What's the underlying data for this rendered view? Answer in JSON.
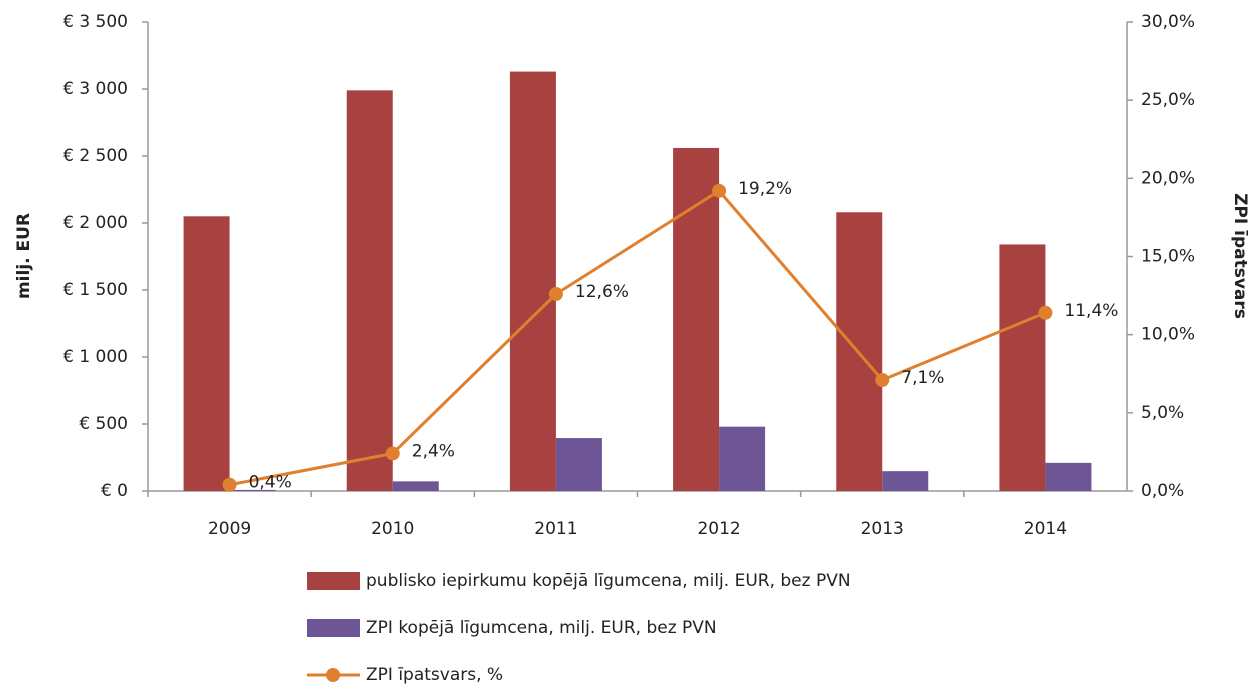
{
  "chart_data": {
    "type": "bar",
    "y_label": "milj. EUR",
    "y2_label": "ZPI īpatsvars",
    "categories": [
      "2009",
      "2010",
      "2011",
      "2012",
      "2013",
      "2014"
    ],
    "series": [
      {
        "name": "publisko iepirkumu kopējā līgumcena, milj. EUR, bez PVN",
        "type": "bar",
        "color": "#a84240",
        "values": [
          2050,
          2990,
          3130,
          2560,
          2080,
          1840
        ]
      },
      {
        "name": "ZPI kopējā līgumcena, milj. EUR, bez PVN",
        "type": "bar",
        "color": "#6e5596",
        "values": [
          8,
          72,
          395,
          480,
          148,
          210
        ]
      },
      {
        "name": "ZPI īpatsvars, %",
        "type": "line",
        "axis": "y2",
        "color": "#e07f2e",
        "values": [
          0.4,
          2.4,
          12.6,
          19.2,
          7.1,
          11.4
        ],
        "value_labels": [
          "0,4%",
          "2,4%",
          "12,6%",
          "19,2%",
          "7,1%",
          "11,4%"
        ]
      }
    ],
    "ylim": [
      0,
      3500
    ],
    "yticks": [
      {
        "value": 0,
        "label": "€ 0"
      },
      {
        "value": 500,
        "label": "€ 500"
      },
      {
        "value": 1000,
        "label": "€ 1 000"
      },
      {
        "value": 1500,
        "label": "€ 1 500"
      },
      {
        "value": 2000,
        "label": "€ 2 000"
      },
      {
        "value": 2500,
        "label": "€ 2 500"
      },
      {
        "value": 3000,
        "label": "€ 3 000"
      },
      {
        "value": 3500,
        "label": "€ 3 500"
      }
    ],
    "y2lim": [
      0,
      30
    ],
    "y2ticks": [
      {
        "value": 0,
        "label": "0,0%"
      },
      {
        "value": 5,
        "label": "5,0%"
      },
      {
        "value": 10,
        "label": "10,0%"
      },
      {
        "value": 15,
        "label": "15,0%"
      },
      {
        "value": 20,
        "label": "20,0%"
      },
      {
        "value": 25,
        "label": "25,0%"
      },
      {
        "value": 30,
        "label": "30,0%"
      }
    ],
    "grid": false,
    "legend": "bottom"
  }
}
